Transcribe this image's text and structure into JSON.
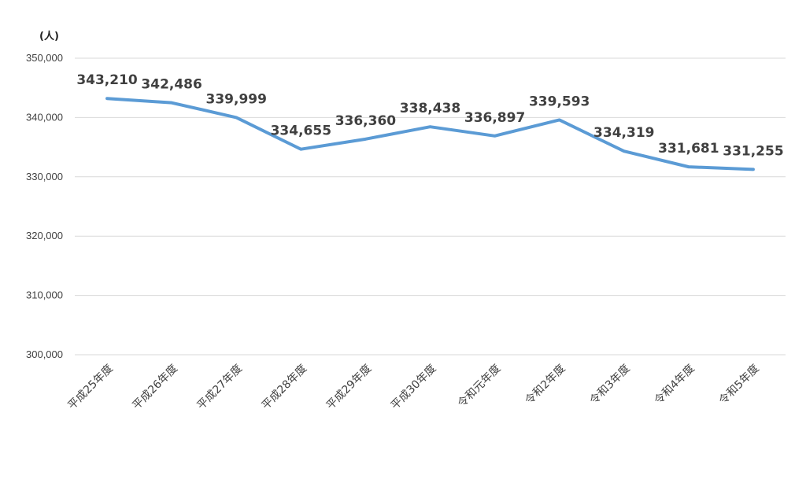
{
  "chart_data": {
    "type": "line",
    "title": "",
    "ylabel": "(人)",
    "xlabel": "",
    "categories": [
      "平成25年度",
      "平成26年度",
      "平成27年度",
      "平成28年度",
      "平成29年度",
      "平成30年度",
      "令和元年度",
      "令和2年度",
      "令和3年度",
      "令和4年度",
      "令和5年度"
    ],
    "values": [
      343210,
      342486,
      339999,
      334655,
      336360,
      338438,
      336897,
      339593,
      334319,
      331681,
      331255
    ],
    "value_labels": [
      "343,210",
      "342,486",
      "339,999",
      "334,655",
      "336,360",
      "338,438",
      "336,897",
      "339,593",
      "334,319",
      "331,681",
      "331,255"
    ],
    "ylim": [
      300000,
      350000
    ],
    "yticks": [
      300000,
      310000,
      320000,
      330000,
      340000,
      350000
    ],
    "ytick_labels": [
      "300,000",
      "310,000",
      "320,000",
      "330,000",
      "340,000",
      "350,000"
    ],
    "grid": true,
    "legend": "none",
    "line_color": "#5b9bd5"
  }
}
